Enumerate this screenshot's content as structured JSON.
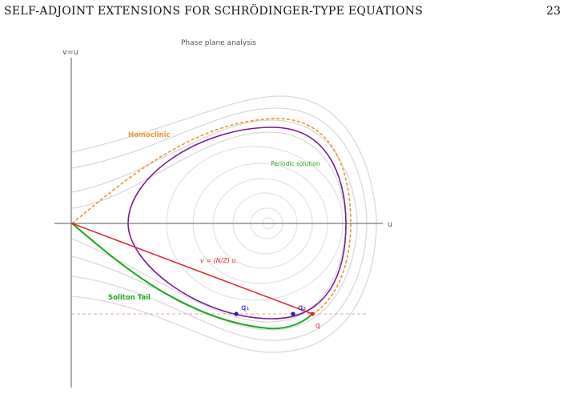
{
  "header": {
    "title": "SELF-ADJOINT EXTENSIONS FOR SCHRÖDINGER-TYPE EQUATIONS",
    "page_number": "23"
  },
  "figure": {
    "title": "Phase plane analysis",
    "axis_v": "v=u",
    "axis_u": "u",
    "labels": {
      "homoclinic": "Homoclinic",
      "periodic": "Periodic solution",
      "line": "v = (N/Z) u",
      "soliton": "Soliton Tail",
      "q1": "q₁",
      "q2": "q₂",
      "q": "q"
    },
    "colors": {
      "homoclinic": "#f4912b",
      "periodic": "#7b1a8c",
      "soliton": "#1fa81f",
      "line": "#e32222",
      "points": "#1b1bd6",
      "level_curves": "#d6d6d6"
    }
  }
}
